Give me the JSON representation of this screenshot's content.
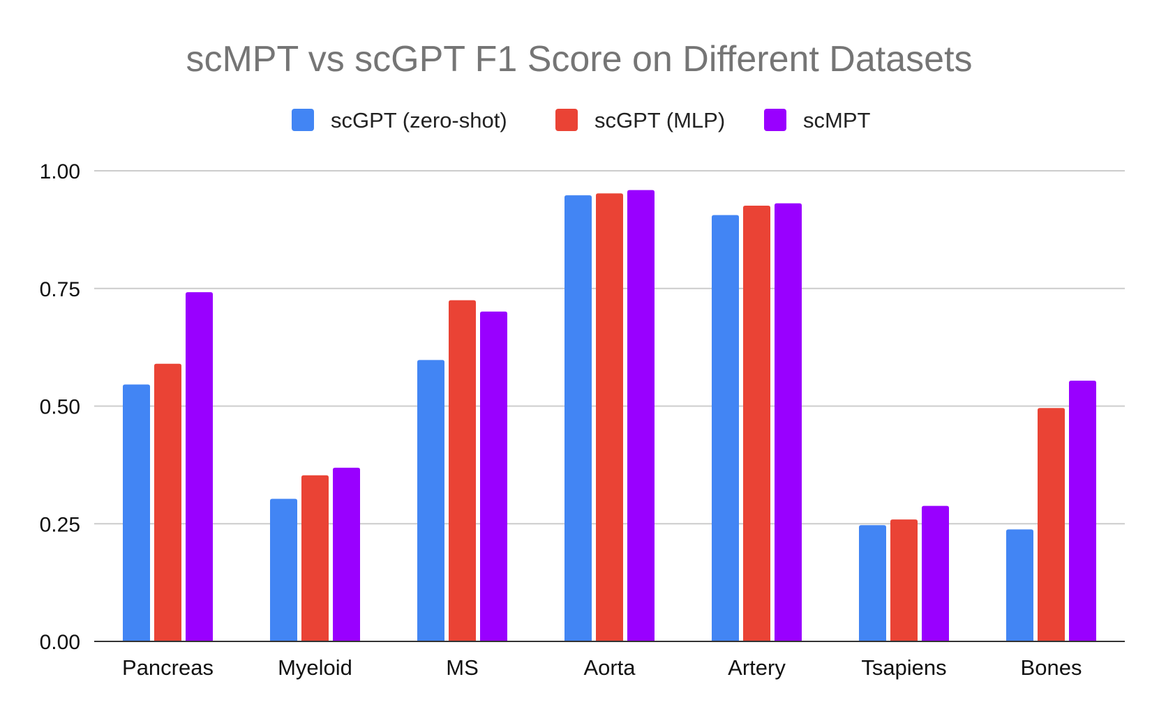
{
  "chart_data": {
    "type": "bar",
    "title": "scMPT vs scGPT F1 Score on Different Datasets",
    "xlabel": "",
    "ylabel": "",
    "ylim": [
      0,
      1
    ],
    "yticks": [
      "0.00",
      "0.25",
      "0.50",
      "0.75",
      "1.00"
    ],
    "yticks_values": [
      0,
      0.25,
      0.5,
      0.75,
      1.0
    ],
    "grid": true,
    "legend_position": "top-center",
    "categories": [
      "Pancreas",
      "Myeloid",
      "MS",
      "Aorta",
      "Artery",
      "Tsapiens",
      "Bones"
    ],
    "series": [
      {
        "name": "scGPT (zero-shot)",
        "color": "#4285f4",
        "values": [
          0.546,
          0.303,
          0.598,
          0.948,
          0.906,
          0.247,
          0.238
        ]
      },
      {
        "name": "scGPT (MLP)",
        "color": "#ea4335",
        "values": [
          0.59,
          0.353,
          0.725,
          0.952,
          0.926,
          0.259,
          0.496
        ]
      },
      {
        "name": "scMPT",
        "color": "#9900ff",
        "values": [
          0.742,
          0.369,
          0.701,
          0.959,
          0.931,
          0.288,
          0.554
        ]
      }
    ]
  }
}
